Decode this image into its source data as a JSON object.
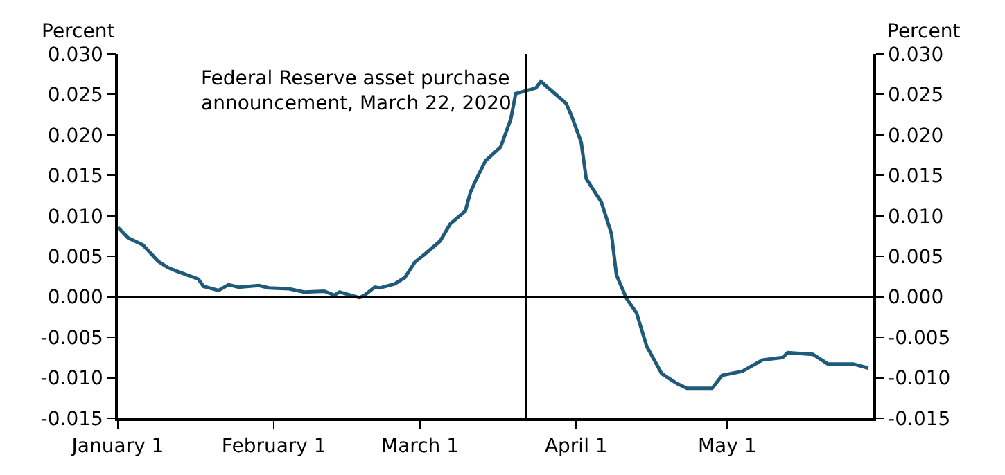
{
  "chart_data": {
    "type": "line",
    "ylabel": "Percent",
    "y2label": "Percent",
    "x": [
      "2020-01-01",
      "2020-01-03",
      "2020-01-06",
      "2020-01-09",
      "2020-01-11",
      "2020-01-13",
      "2020-01-17",
      "2020-01-18",
      "2020-01-21",
      "2020-01-23",
      "2020-01-25",
      "2020-01-29",
      "2020-01-31",
      "2020-02-04",
      "2020-02-07",
      "2020-02-11",
      "2020-02-13",
      "2020-02-14",
      "2020-02-18",
      "2020-02-19",
      "2020-02-21",
      "2020-02-22",
      "2020-02-25",
      "2020-02-27",
      "2020-02-29",
      "2020-03-02",
      "2020-03-05",
      "2020-03-07",
      "2020-03-10",
      "2020-03-11",
      "2020-03-12",
      "2020-03-14",
      "2020-03-17",
      "2020-03-19",
      "2020-03-20",
      "2020-03-24",
      "2020-03-25",
      "2020-03-30",
      "2020-03-31",
      "2020-04-02",
      "2020-04-03",
      "2020-04-06",
      "2020-04-08",
      "2020-04-09",
      "2020-04-11",
      "2020-04-13",
      "2020-04-15",
      "2020-04-18",
      "2020-04-21",
      "2020-04-23",
      "2020-04-28",
      "2020-04-30",
      "2020-05-04",
      "2020-05-08",
      "2020-05-12",
      "2020-05-13",
      "2020-05-18",
      "2020-05-21",
      "2020-05-26",
      "2020-05-29"
    ],
    "series": [
      {
        "color": "#1f5a7a",
        "values": [
          0.0086,
          0.0073,
          0.0064,
          0.0044,
          0.0036,
          0.0031,
          0.0022,
          0.0013,
          0.0008,
          0.0015,
          0.0012,
          0.0014,
          0.0011,
          0.001,
          0.0006,
          0.0007,
          0.0002,
          0.0006,
          -0.0001,
          0.0002,
          0.0012,
          0.0011,
          0.0016,
          0.0024,
          0.0043,
          0.0053,
          0.0069,
          0.009,
          0.0106,
          0.0129,
          0.0143,
          0.0168,
          0.0185,
          0.0219,
          0.0251,
          0.0258,
          0.0266,
          0.0239,
          0.0225,
          0.0191,
          0.0146,
          0.0117,
          0.0078,
          0.0027,
          -0.0002,
          -0.002,
          -0.0061,
          -0.0095,
          -0.0107,
          -0.0113,
          -0.0113,
          -0.0097,
          -0.0092,
          -0.0078,
          -0.0075,
          -0.0069,
          -0.0071,
          -0.0083,
          -0.0083,
          -0.0088
        ]
      }
    ],
    "xlim": [
      "2020-01-01",
      "2020-05-30"
    ],
    "xticks": [
      {
        "value": "2020-01-01",
        "label": "January 1"
      },
      {
        "value": "2020-02-01",
        "label": "February 1"
      },
      {
        "value": "2020-03-01",
        "label": "March 1"
      },
      {
        "value": "2020-04-01",
        "label": "April 1"
      },
      {
        "value": "2020-05-01",
        "label": "May 1"
      }
    ],
    "ylim": [
      -0.015,
      0.03
    ],
    "yticks": [
      {
        "value": -0.015,
        "label": "-0.015"
      },
      {
        "value": -0.01,
        "label": "-0.010"
      },
      {
        "value": -0.005,
        "label": "-0.005"
      },
      {
        "value": 0,
        "label": "0.000"
      },
      {
        "value": 0.005,
        "label": "0.005"
      },
      {
        "value": 0.01,
        "label": "0.010"
      },
      {
        "value": 0.015,
        "label": "0.015"
      },
      {
        "value": 0.02,
        "label": "0.020"
      },
      {
        "value": 0.025,
        "label": "0.025"
      },
      {
        "value": 0.03,
        "label": "0.030"
      }
    ],
    "y2lim": [
      -0.015,
      0.03
    ],
    "y2ticks": [
      {
        "value": -0.015,
        "label": "-0.015"
      },
      {
        "value": -0.01,
        "label": "-0.010"
      },
      {
        "value": -0.005,
        "label": "-0.005"
      },
      {
        "value": 0,
        "label": "0.000"
      },
      {
        "value": 0.005,
        "label": "0.005"
      },
      {
        "value": 0.01,
        "label": "0.010"
      },
      {
        "value": 0.015,
        "label": "0.015"
      },
      {
        "value": 0.02,
        "label": "0.020"
      },
      {
        "value": 0.025,
        "label": "0.025"
      },
      {
        "value": 0.03,
        "label": "0.030"
      }
    ],
    "ref_lines": [
      {
        "axis": "y",
        "value": 0,
        "color": "#000000"
      },
      {
        "axis": "x",
        "value": "2020-03-22",
        "color": "#000000",
        "label": "Federal Reserve asset purchase\nannouncement, March 22, 2020"
      }
    ],
    "legend": false,
    "marker": "none",
    "line_style": "solid"
  }
}
